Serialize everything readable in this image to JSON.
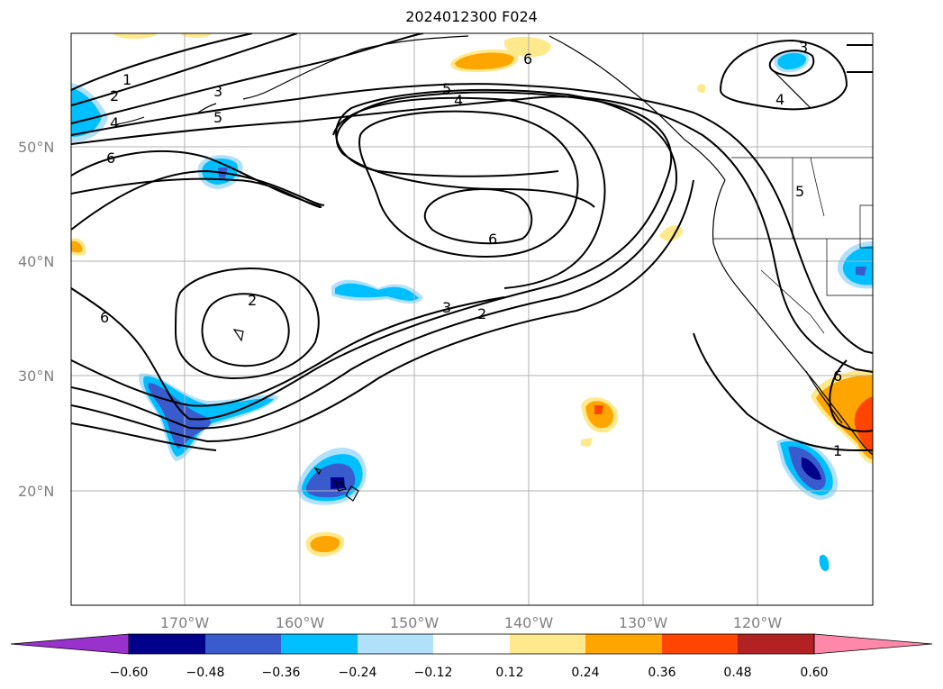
{
  "title": "2024012300 F024",
  "map": {
    "lat_labels": [
      "50°N",
      "40°N",
      "30°N",
      "20°N"
    ],
    "lon_labels": [
      "170°W",
      "160°W",
      "150°W",
      "140°W",
      "130°W",
      "120°W"
    ],
    "contour_labels": [
      "1",
      "2",
      "3",
      "4",
      "5",
      "6",
      "5",
      "4",
      "6",
      "6",
      "2",
      "3",
      "2",
      "6",
      "6",
      "3",
      "4",
      "1",
      "5"
    ]
  },
  "colorbar": {
    "ticks": [
      "−0.60",
      "−0.48",
      "−0.36",
      "−0.24",
      "−0.12",
      "0.12",
      "0.24",
      "0.36",
      "0.48",
      "0.60"
    ],
    "colors": {
      "under": "#9932cc",
      "b1": "#00008b",
      "b2": "#3a5bcd",
      "b3": "#00bfff",
      "b4": "#b0e0fa",
      "mid": "#ffffff",
      "r1": "#ffe98c",
      "r2": "#ffa500",
      "r3": "#ff4500",
      "r4": "#b22222",
      "over": "#ff88aa"
    }
  }
}
